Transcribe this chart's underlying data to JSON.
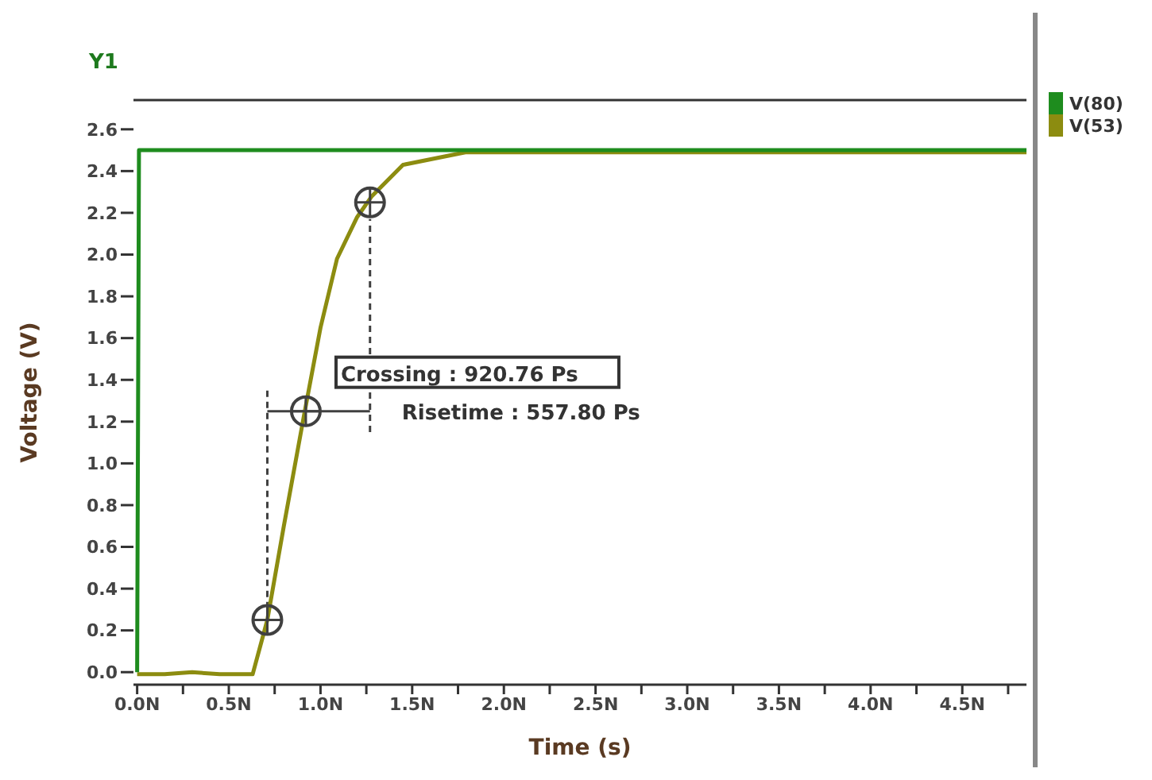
{
  "chart_data": {
    "type": "line",
    "xlabel": "Time (s)",
    "ylabel": "Voltage (V)",
    "annotations": [
      "Y1",
      {
        "text": "Crossing : 920.76 Ps",
        "x": 0.92,
        "y": 1.25
      },
      {
        "text": "Risetime : 557.80 Ps",
        "x": 1.27,
        "y": 1.25
      }
    ],
    "xlim": [
      -0.02,
      4.85
    ],
    "xticks": [
      {
        "value": 0,
        "label": "0.0N"
      },
      {
        "value": 0.25,
        "label": null
      },
      {
        "value": 0.5,
        "label": "0.5N"
      },
      {
        "value": 0.75,
        "label": null
      },
      {
        "value": 1,
        "label": "1.0N"
      },
      {
        "value": 1.25,
        "label": null
      },
      {
        "value": 1.5,
        "label": "1.5N"
      },
      {
        "value": 1.75,
        "label": null
      },
      {
        "value": 2,
        "label": "2.0N"
      },
      {
        "value": 2.25,
        "label": null
      },
      {
        "value": 2.5,
        "label": "2.5N"
      },
      {
        "value": 2.75,
        "label": null
      },
      {
        "value": 3,
        "label": "3.0N"
      },
      {
        "value": 3.25,
        "label": null
      },
      {
        "value": 3.5,
        "label": "3.5N"
      },
      {
        "value": 3.75,
        "label": null
      },
      {
        "value": 4,
        "label": "4.0N"
      },
      {
        "value": 4.25,
        "label": null
      },
      {
        "value": 4.5,
        "label": "4.5N"
      },
      {
        "value": 4.75,
        "label": null
      }
    ],
    "ylim": [
      -0.06,
      2.74
    ],
    "yticks": [
      {
        "value": 0,
        "label": "0.0"
      },
      0.2,
      0.4,
      0.6,
      0.8,
      {
        "value": 1,
        "label": "1.0"
      },
      1.2,
      1.4,
      1.6,
      1.8,
      {
        "value": 2,
        "label": "2.0"
      },
      2.2,
      2.4,
      2.6
    ],
    "grid": false,
    "legend": "top right",
    "marker": "none",
    "line_style": "solid",
    "series": [
      {
        "name": "V(80)",
        "color": "#1e8c1e",
        "x": [
          0,
          0.01,
          4.85
        ],
        "values": [
          0,
          2.5,
          2.5
        ]
      },
      {
        "name": "V(53)",
        "color": "#8c8c10",
        "x": [
          0,
          0.15,
          0.3,
          0.45,
          0.63,
          0.71,
          0.8,
          0.91,
          1.0,
          1.09,
          1.2,
          1.28,
          1.45,
          1.79,
          4.85
        ],
        "values": [
          -0.01,
          -0.01,
          0,
          -0.01,
          -0.01,
          0.25,
          0.7,
          1.23,
          1.65,
          1.98,
          2.18,
          2.28,
          2.43,
          2.49,
          2.49
        ]
      },
      {
        "type": "scatter",
        "color": "#404040",
        "marker": "circle",
        "x": [
          0.71,
          0.92,
          1.27
        ],
        "values": [
          0.25,
          1.25,
          2.25
        ]
      },
      {
        "color": "#404040",
        "line_style": "dashed",
        "x": [
          0.71,
          0.71
        ],
        "values": [
          0.2,
          1.35
        ]
      },
      {
        "color": "#404040",
        "line_style": "dashed",
        "x": [
          1.27,
          1.27
        ],
        "values": [
          1.15,
          2.17
        ]
      },
      {
        "color": "#404040",
        "line_style": "solid",
        "x": [
          0.71,
          1.27
        ],
        "values": [
          1.25,
          1.25
        ]
      }
    ]
  }
}
